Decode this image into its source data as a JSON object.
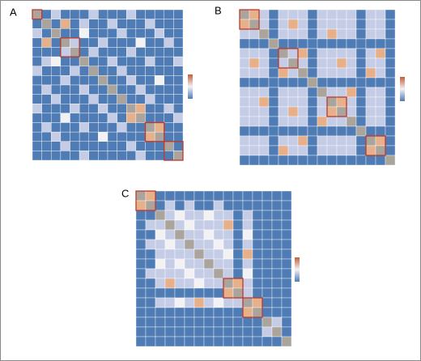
{
  "chart_data": [
    {
      "type": "heatmap",
      "panel_label": "A",
      "colors": [
        "#4f7cb5",
        "#c5cce6",
        "#f2f2f5",
        "#e6b08b",
        "#aaa49c"
      ],
      "values": [
        [
          4,
          0,
          1,
          0,
          0,
          0,
          1,
          0,
          0,
          0,
          1,
          0,
          0,
          0,
          0,
          0
        ],
        [
          0,
          4,
          0,
          3,
          0,
          1,
          0,
          0,
          1,
          0,
          0,
          0,
          1,
          0,
          0,
          0
        ],
        [
          1,
          0,
          4,
          0,
          0,
          2,
          0,
          0,
          0,
          1,
          0,
          0,
          0,
          1,
          0,
          0
        ],
        [
          0,
          3,
          0,
          4,
          1,
          0,
          0,
          1,
          0,
          0,
          0,
          2,
          0,
          0,
          1,
          0
        ],
        [
          0,
          0,
          0,
          1,
          4,
          0,
          1,
          0,
          0,
          0,
          1,
          0,
          0,
          0,
          0,
          0
        ],
        [
          0,
          1,
          2,
          0,
          0,
          4,
          0,
          0,
          1,
          0,
          0,
          0,
          1,
          0,
          0,
          1
        ],
        [
          1,
          0,
          0,
          0,
          1,
          0,
          4,
          0,
          0,
          1,
          0,
          0,
          0,
          0,
          0,
          0
        ],
        [
          0,
          0,
          0,
          1,
          0,
          0,
          0,
          4,
          0,
          0,
          1,
          0,
          0,
          2,
          0,
          0
        ],
        [
          0,
          1,
          0,
          0,
          0,
          1,
          0,
          0,
          4,
          0,
          0,
          1,
          0,
          0,
          0,
          0
        ],
        [
          0,
          0,
          1,
          0,
          0,
          0,
          1,
          0,
          0,
          4,
          0,
          0,
          1,
          0,
          0,
          0
        ],
        [
          1,
          0,
          0,
          0,
          1,
          0,
          0,
          1,
          0,
          0,
          4,
          3,
          0,
          0,
          1,
          0
        ],
        [
          0,
          0,
          0,
          2,
          0,
          0,
          0,
          0,
          1,
          0,
          3,
          4,
          0,
          0,
          0,
          1
        ],
        [
          0,
          1,
          0,
          0,
          0,
          1,
          0,
          0,
          0,
          1,
          0,
          0,
          4,
          3,
          0,
          0
        ],
        [
          0,
          0,
          1,
          0,
          0,
          0,
          0,
          2,
          0,
          0,
          0,
          0,
          3,
          4,
          0,
          0
        ],
        [
          0,
          0,
          0,
          1,
          0,
          0,
          0,
          0,
          0,
          0,
          1,
          0,
          0,
          0,
          4,
          0
        ],
        [
          0,
          0,
          0,
          0,
          0,
          1,
          0,
          0,
          0,
          0,
          0,
          1,
          0,
          0,
          0,
          4
        ]
      ]
    },
    {
      "type": "heatmap",
      "panel_label": "B",
      "colors": [
        "#4f7cb5",
        "#c5cce6",
        "#f2f2f5",
        "#e6b08b",
        "#aaa49c"
      ],
      "values": [
        [
          4,
          3,
          1,
          0,
          1,
          1,
          1,
          0,
          1,
          1,
          1,
          1,
          0,
          1,
          1,
          0
        ],
        [
          3,
          4,
          1,
          0,
          1,
          3,
          1,
          0,
          1,
          1,
          1,
          1,
          0,
          1,
          1,
          0
        ],
        [
          1,
          1,
          4,
          0,
          1,
          1,
          1,
          0,
          1,
          3,
          1,
          1,
          0,
          1,
          1,
          0
        ],
        [
          0,
          0,
          0,
          4,
          0,
          0,
          0,
          0,
          0,
          0,
          0,
          0,
          0,
          0,
          0,
          0
        ],
        [
          1,
          1,
          1,
          0,
          4,
          1,
          3,
          0,
          1,
          1,
          1,
          1,
          0,
          1,
          3,
          0
        ],
        [
          1,
          3,
          1,
          0,
          1,
          4,
          1,
          0,
          1,
          1,
          3,
          1,
          0,
          1,
          1,
          0
        ],
        [
          1,
          1,
          1,
          0,
          3,
          1,
          4,
          0,
          1,
          1,
          1,
          1,
          0,
          3,
          1,
          0
        ],
        [
          0,
          0,
          0,
          0,
          0,
          0,
          0,
          4,
          0,
          0,
          0,
          0,
          0,
          0,
          0,
          0
        ],
        [
          1,
          1,
          1,
          0,
          1,
          1,
          1,
          0,
          4,
          1,
          1,
          3,
          0,
          1,
          1,
          0
        ],
        [
          1,
          1,
          3,
          0,
          1,
          1,
          1,
          0,
          1,
          4,
          3,
          1,
          0,
          1,
          1,
          0
        ],
        [
          1,
          1,
          1,
          0,
          1,
          3,
          1,
          0,
          1,
          3,
          4,
          1,
          0,
          1,
          1,
          0
        ],
        [
          1,
          1,
          1,
          0,
          1,
          1,
          1,
          0,
          3,
          1,
          1,
          4,
          0,
          1,
          1,
          0
        ],
        [
          0,
          0,
          0,
          0,
          0,
          0,
          0,
          0,
          0,
          0,
          0,
          0,
          4,
          0,
          0,
          0
        ],
        [
          1,
          1,
          1,
          0,
          1,
          1,
          3,
          0,
          1,
          1,
          1,
          1,
          0,
          4,
          3,
          0
        ],
        [
          1,
          1,
          1,
          0,
          3,
          1,
          1,
          0,
          1,
          1,
          1,
          1,
          0,
          3,
          4,
          0
        ],
        [
          0,
          0,
          0,
          0,
          0,
          0,
          0,
          0,
          0,
          0,
          0,
          0,
          0,
          0,
          0,
          4
        ]
      ]
    },
    {
      "type": "heatmap",
      "panel_label": "C",
      "colors": [
        "#4f7cb5",
        "#c5cce6",
        "#f2f2f5",
        "#e6b08b",
        "#aaa49c"
      ],
      "values": [
        [
          4,
          3,
          0,
          0,
          0,
          0,
          0,
          0,
          0,
          0,
          0,
          0,
          0,
          0,
          0,
          0
        ],
        [
          3,
          4,
          0,
          1,
          0,
          1,
          0,
          0,
          1,
          0,
          0,
          0,
          0,
          0,
          0,
          0
        ],
        [
          0,
          0,
          4,
          1,
          2,
          1,
          1,
          2,
          1,
          1,
          0,
          1,
          0,
          0,
          0,
          0
        ],
        [
          0,
          1,
          1,
          4,
          1,
          2,
          1,
          1,
          1,
          3,
          0,
          1,
          0,
          0,
          0,
          0
        ],
        [
          0,
          0,
          2,
          1,
          4,
          1,
          1,
          2,
          1,
          1,
          0,
          2,
          0,
          0,
          0,
          0
        ],
        [
          0,
          1,
          1,
          2,
          1,
          4,
          1,
          1,
          2,
          1,
          0,
          1,
          0,
          0,
          0,
          0
        ],
        [
          0,
          0,
          1,
          1,
          1,
          1,
          4,
          1,
          1,
          2,
          0,
          3,
          0,
          0,
          0,
          0
        ],
        [
          0,
          0,
          2,
          1,
          2,
          1,
          1,
          4,
          1,
          1,
          0,
          1,
          0,
          0,
          0,
          0
        ],
        [
          0,
          1,
          1,
          1,
          1,
          2,
          1,
          1,
          4,
          1,
          0,
          2,
          0,
          0,
          0,
          0
        ],
        [
          0,
          0,
          1,
          3,
          1,
          1,
          2,
          1,
          1,
          4,
          3,
          1,
          0,
          0,
          0,
          0
        ],
        [
          0,
          0,
          0,
          0,
          0,
          0,
          0,
          0,
          0,
          3,
          4,
          1,
          0,
          0,
          0,
          0
        ],
        [
          0,
          0,
          1,
          1,
          2,
          1,
          3,
          1,
          2,
          1,
          1,
          4,
          3,
          0,
          0,
          0
        ],
        [
          0,
          0,
          0,
          0,
          0,
          0,
          0,
          0,
          0,
          0,
          0,
          3,
          4,
          0,
          0,
          0
        ],
        [
          0,
          0,
          0,
          0,
          0,
          0,
          0,
          0,
          0,
          0,
          0,
          0,
          0,
          4,
          1,
          0
        ],
        [
          0,
          0,
          0,
          0,
          0,
          0,
          0,
          0,
          0,
          0,
          0,
          0,
          0,
          1,
          4,
          0
        ],
        [
          0,
          0,
          0,
          0,
          0,
          0,
          0,
          0,
          0,
          0,
          0,
          0,
          0,
          0,
          0,
          4
        ]
      ]
    }
  ]
}
